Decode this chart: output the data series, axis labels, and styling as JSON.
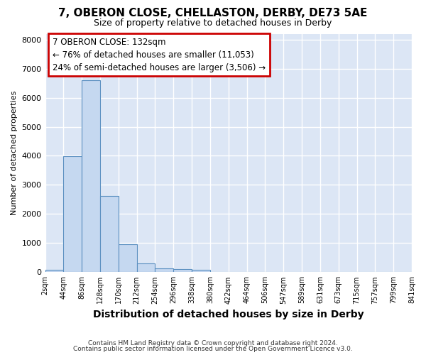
{
  "title": "7, OBERON CLOSE, CHELLASTON, DERBY, DE73 5AE",
  "subtitle": "Size of property relative to detached houses in Derby",
  "xlabel": "Distribution of detached houses by size in Derby",
  "ylabel": "Number of detached properties",
  "footnote1": "Contains HM Land Registry data © Crown copyright and database right 2024.",
  "footnote2": "Contains public sector information licensed under the Open Government Licence v3.0.",
  "annotation_title": "7 OBERON CLOSE: 132sqm",
  "annotation_line2": "← 76% of detached houses are smaller (11,053)",
  "annotation_line3": "24% of semi-detached houses are larger (3,506) →",
  "bar_values": [
    75,
    3980,
    6610,
    2610,
    950,
    300,
    130,
    100,
    90,
    0,
    0,
    0,
    0,
    0,
    0,
    0,
    0,
    0,
    0,
    0
  ],
  "bar_labels": [
    "2sqm",
    "44sqm",
    "86sqm",
    "128sqm",
    "170sqm",
    "212sqm",
    "254sqm",
    "296sqm",
    "338sqm",
    "380sqm",
    "422sqm",
    "464sqm",
    "506sqm",
    "547sqm",
    "589sqm",
    "631sqm",
    "673sqm",
    "715sqm",
    "757sqm",
    "799sqm",
    "841sqm"
  ],
  "bar_color": "#c5d8f0",
  "bar_edge_color": "#5a8fc0",
  "annotation_box_color": "#cc0000",
  "background_color": "#dce6f5",
  "grid_color": "#ffffff",
  "fig_bg_color": "#ffffff",
  "ylim": [
    0,
    8200
  ],
  "yticks": [
    0,
    1000,
    2000,
    3000,
    4000,
    5000,
    6000,
    7000,
    8000
  ],
  "title_fontsize": 11,
  "subtitle_fontsize": 9,
  "xlabel_fontsize": 10,
  "ylabel_fontsize": 8,
  "annotation_fontsize": 8.5
}
